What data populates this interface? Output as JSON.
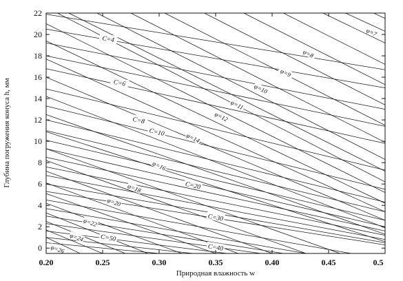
{
  "chart_data": {
    "type": "line",
    "xlabel": "Природная влажность w",
    "ylabel": "Глубина погружения конуса h, мм",
    "xlim": [
      0.2,
      0.5
    ],
    "ylim": [
      -0.5,
      22
    ],
    "xticks": [
      "0.20",
      "0.25",
      "0.30",
      "0.35",
      "0.40",
      "0.45",
      "0.5"
    ],
    "xtick_values": [
      0.2,
      0.25,
      0.3,
      0.35,
      0.4,
      0.45,
      0.5
    ],
    "yticks": [
      "0",
      "2",
      "4",
      "6",
      "8",
      "10",
      "12",
      "14",
      "16",
      "18",
      "20",
      "22"
    ],
    "ytick_values": [
      0,
      2,
      4,
      6,
      8,
      10,
      12,
      14,
      16,
      18,
      20,
      22
    ],
    "grid": false,
    "c_family": {
      "description_label_prefix": "C",
      "lines": [
        {
          "label": "C=4",
          "points": [
            [
              0.2,
              21.9
            ],
            [
              0.5,
              16.7
            ]
          ],
          "label_at": [
            0.255,
            19.6
          ]
        },
        {
          "label": "C=6",
          "points": [
            [
              0.2,
              19.2
            ],
            [
              0.5,
              13.0
            ]
          ],
          "label_at": [
            0.265,
            15.5
          ]
        },
        {
          "label": "C=8",
          "points": [
            [
              0.2,
              16.8
            ],
            [
              0.5,
              9.8
            ]
          ],
          "label_at": [
            0.282,
            12.0
          ]
        },
        {
          "label": "C=10",
          "points": [
            [
              0.2,
              14.9
            ],
            [
              0.5,
              7.3
            ]
          ],
          "label_at": [
            0.298,
            10.9
          ]
        },
        {
          "label": "C=20",
          "points": [
            [
              0.2,
              10.1
            ],
            [
              0.5,
              2.6
            ]
          ],
          "label_at": [
            0.33,
            5.9
          ]
        },
        {
          "label": "C=30",
          "points": [
            [
              0.2,
              6.8
            ],
            [
              0.5,
              0.8
            ]
          ],
          "label_at": [
            0.35,
            2.9
          ]
        },
        {
          "label": "C=40",
          "points": [
            [
              0.2,
              5.3
            ],
            [
              0.5,
              0.3
            ]
          ],
          "label_at": [
            0.35,
            0.1
          ]
        },
        {
          "label": "C=50",
          "points": [
            [
              0.2,
              3.7
            ],
            [
              0.43,
              -0.5
            ]
          ],
          "label_at": [
            0.255,
            1.0
          ]
        }
      ],
      "unlabeled": [
        [
          [
            0.2,
            20.5
          ],
          [
            0.5,
            15.0
          ]
        ],
        [
          [
            0.2,
            18.0
          ],
          [
            0.5,
            11.4
          ]
        ],
        [
          [
            0.2,
            13.3
          ],
          [
            0.5,
            5.5
          ]
        ],
        [
          [
            0.2,
            12.0
          ],
          [
            0.5,
            4.3
          ]
        ],
        [
          [
            0.2,
            11.0
          ],
          [
            0.5,
            3.4
          ]
        ],
        [
          [
            0.2,
            9.3
          ],
          [
            0.5,
            2.0
          ]
        ],
        [
          [
            0.2,
            8.5
          ],
          [
            0.5,
            1.6
          ]
        ],
        [
          [
            0.2,
            7.6
          ],
          [
            0.5,
            1.2
          ]
        ],
        [
          [
            0.2,
            6.0
          ],
          [
            0.5,
            0.5
          ]
        ],
        [
          [
            0.2,
            4.5
          ],
          [
            0.47,
            -0.5
          ]
        ],
        [
          [
            0.2,
            3.0
          ],
          [
            0.41,
            -0.5
          ]
        ],
        [
          [
            0.2,
            2.3
          ],
          [
            0.39,
            -0.5
          ]
        ],
        [
          [
            0.2,
            1.6
          ],
          [
            0.36,
            -0.5
          ]
        ],
        [
          [
            0.2,
            1.0
          ],
          [
            0.33,
            -0.5
          ]
        ],
        [
          [
            0.2,
            0.5
          ],
          [
            0.3,
            -0.5
          ]
        ]
      ]
    },
    "phi_family": {
      "description_label_prefix": "φ",
      "lines": [
        {
          "label": "φ=7",
          "points": [
            [
              0.41,
              22
            ],
            [
              0.5,
              17.2
            ]
          ],
          "label_at": [
            0.488,
            20.2
          ]
        },
        {
          "label": "φ=8",
          "points": [
            [
              0.375,
              22
            ],
            [
              0.5,
              15.3
            ]
          ],
          "label_at": [
            0.432,
            18.2
          ]
        },
        {
          "label": "φ=9",
          "points": [
            [
              0.34,
              22
            ],
            [
              0.5,
              13.4
            ]
          ],
          "label_at": [
            0.412,
            16.4
          ]
        },
        {
          "label": "φ=10",
          "points": [
            [
              0.305,
              22
            ],
            [
              0.5,
              11.5
            ]
          ],
          "label_at": [
            0.39,
            14.9
          ]
        },
        {
          "label": "φ=11",
          "points": [
            [
              0.275,
              22
            ],
            [
              0.5,
              9.9
            ]
          ],
          "label_at": [
            0.369,
            13.4
          ]
        },
        {
          "label": "φ=12",
          "points": [
            [
              0.245,
              22
            ],
            [
              0.5,
              8.3
            ]
          ],
          "label_at": [
            0.355,
            12.3
          ]
        },
        {
          "label": "φ=14",
          "points": [
            [
              0.21,
              22
            ],
            [
              0.5,
              6.2
            ]
          ],
          "label_at": [
            0.33,
            10.3
          ]
        },
        {
          "label": "φ=16",
          "points": [
            [
              0.2,
              19.4
            ],
            [
              0.5,
              4.2
            ]
          ],
          "label_at": [
            0.3,
            7.7
          ]
        },
        {
          "label": "φ=18",
          "points": [
            [
              0.2,
              16.0
            ],
            [
              0.5,
              2.6
            ]
          ],
          "label_at": [
            0.278,
            5.6
          ]
        },
        {
          "label": "φ=20",
          "points": [
            [
              0.2,
              12.5
            ],
            [
              0.5,
              1.3
            ]
          ],
          "label_at": [
            0.26,
            4.3
          ]
        },
        {
          "label": "φ=22",
          "points": [
            [
              0.2,
              9.3
            ],
            [
              0.46,
              -0.5
            ]
          ],
          "label_at": [
            0.239,
            2.4
          ]
        },
        {
          "label": "φ=24",
          "points": [
            [
              0.2,
              7.2
            ],
            [
              0.4,
              -0.5
            ]
          ],
          "label_at": [
            0.227,
            1.0
          ]
        },
        {
          "label": "φ=26",
          "points": [
            [
              0.2,
              5.1
            ],
            [
              0.35,
              -0.5
            ]
          ],
          "label_at": [
            0.21,
            -0.1
          ]
        }
      ],
      "unlabeled": [
        [
          [
            0.445,
            22
          ],
          [
            0.5,
            19.2
          ]
        ],
        [
          [
            0.465,
            22
          ],
          [
            0.5,
            20.3
          ]
        ],
        [
          [
            0.49,
            22
          ],
          [
            0.5,
            21.5
          ]
        ],
        [
          [
            0.22,
            22
          ],
          [
            0.5,
            7.2
          ]
        ],
        [
          [
            0.2,
            21.0
          ],
          [
            0.5,
            5.2
          ]
        ],
        [
          [
            0.2,
            17.7
          ],
          [
            0.5,
            3.4
          ]
        ],
        [
          [
            0.2,
            14.2
          ],
          [
            0.5,
            1.9
          ]
        ],
        [
          [
            0.2,
            10.9
          ],
          [
            0.5,
            0.6
          ]
        ],
        [
          [
            0.2,
            8.2
          ],
          [
            0.43,
            -0.5
          ]
        ],
        [
          [
            0.2,
            6.1
          ],
          [
            0.37,
            -0.5
          ]
        ],
        [
          [
            0.2,
            4.2
          ],
          [
            0.32,
            -0.5
          ]
        ],
        [
          [
            0.2,
            3.3
          ],
          [
            0.29,
            -0.5
          ]
        ],
        [
          [
            0.2,
            2.5
          ],
          [
            0.27,
            -0.5
          ]
        ],
        [
          [
            0.2,
            1.7
          ],
          [
            0.25,
            -0.5
          ]
        ],
        [
          [
            0.2,
            1.0
          ],
          [
            0.23,
            -0.5
          ]
        ]
      ]
    }
  }
}
